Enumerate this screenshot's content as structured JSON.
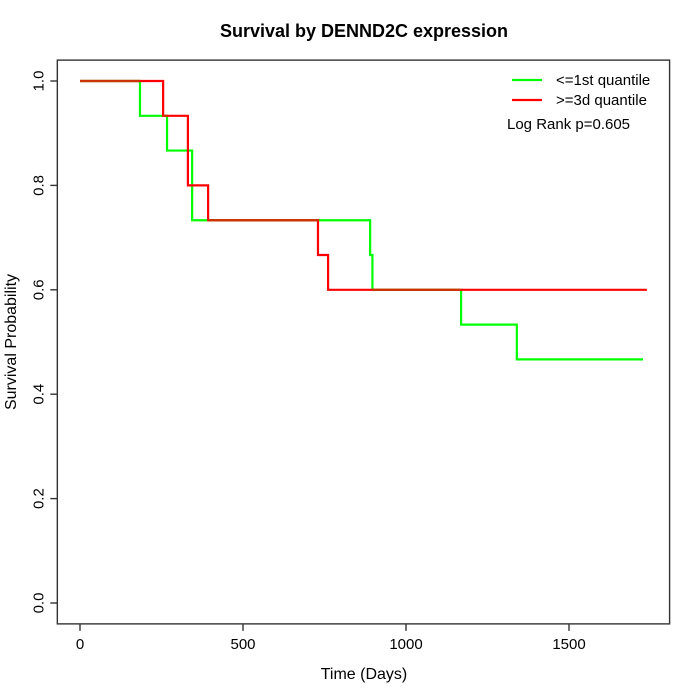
{
  "chart_data": {
    "type": "line",
    "subtype": "kaplan-meier-step",
    "title": "Survival by DENND2C expression",
    "xlabel": "Time (Days)",
    "ylabel": "Survival Probability",
    "xlim": [
      0,
      1739
    ],
    "ylim": [
      0,
      1
    ],
    "x_ticks": [
      0,
      500,
      1000,
      1500
    ],
    "y_ticks": [
      0.0,
      0.2,
      0.4,
      0.6,
      0.8,
      1.0
    ],
    "grid": false,
    "legend_position": "top-right-inside",
    "annotation": "Log Rank p=0.605",
    "overlap_color": "#CC3300",
    "axis_color": "#333333",
    "legend": {
      "entries": [
        {
          "label": "<=1st quantile",
          "color": "#00FF00"
        },
        {
          "label": ">=3d quantile",
          "color": "#FF0000"
        }
      ]
    },
    "series": [
      {
        "name": "<=1st quantile",
        "color": "#00FF00",
        "steps": [
          [
            0,
            1.0
          ],
          [
            184,
            0.9333
          ],
          [
            267,
            0.8667
          ],
          [
            344,
            0.7333
          ],
          [
            890,
            0.6667
          ],
          [
            897,
            0.6
          ],
          [
            1169,
            0.5333
          ],
          [
            1340,
            0.4667
          ]
        ],
        "end_time": 1727
      },
      {
        "name": ">=3d quantile",
        "color": "#FF0000",
        "steps": [
          [
            0,
            1.0
          ],
          [
            255,
            0.9333
          ],
          [
            331,
            0.8
          ],
          [
            393,
            0.7333
          ],
          [
            730,
            0.6667
          ],
          [
            761,
            0.6
          ]
        ],
        "end_time": 1739
      }
    ]
  }
}
